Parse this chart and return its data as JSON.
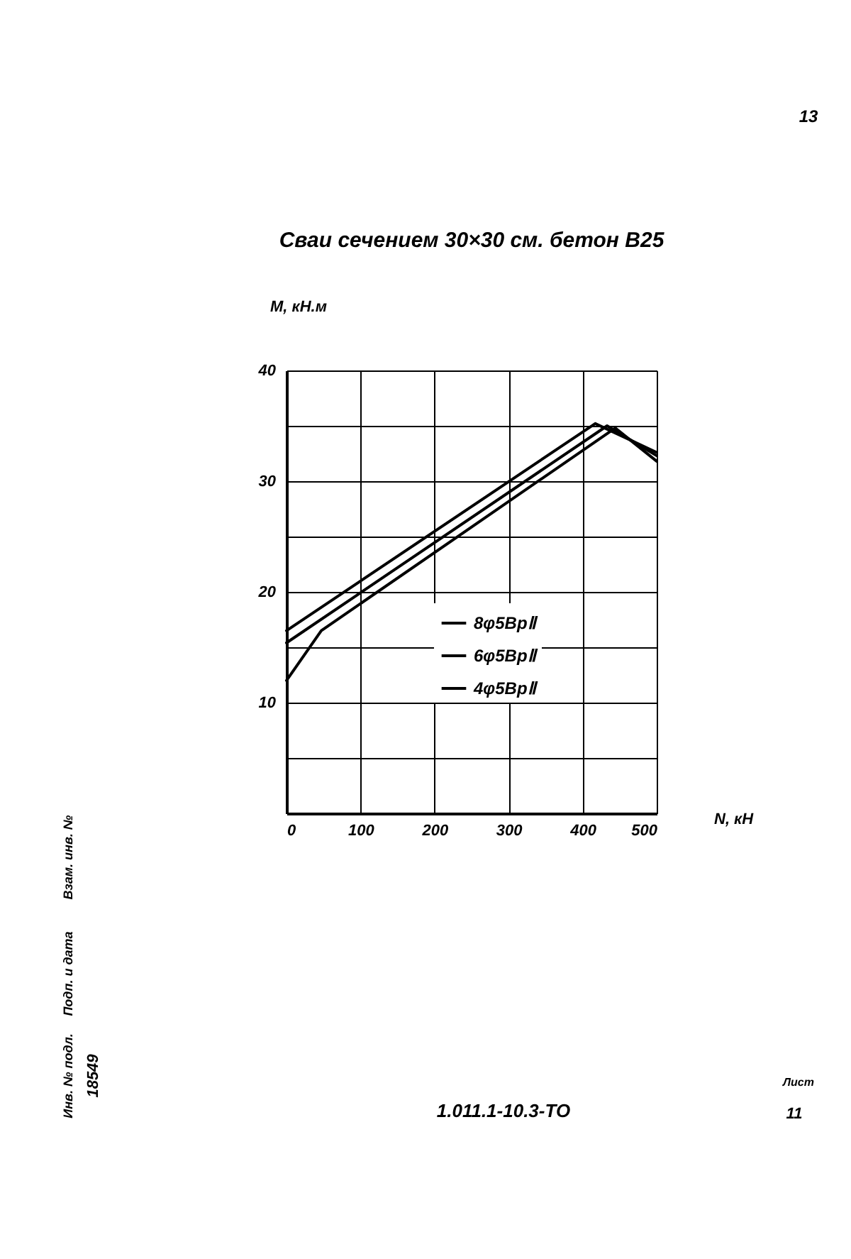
{
  "chart_data": {
    "type": "line",
    "title": "Сваи сечением 30×30 см. бетон В25",
    "xlabel": "N, кН",
    "ylabel": "M, кН.м",
    "xlim": [
      0,
      500
    ],
    "ylim": [
      0,
      40
    ],
    "xticks": [
      0,
      100,
      200,
      300,
      400,
      500
    ],
    "yticks": [
      {
        "value": 5,
        "label": null
      },
      10,
      {
        "value": 15,
        "label": null
      },
      20,
      {
        "value": 25,
        "label": null
      },
      30,
      {
        "value": 35,
        "label": null
      },
      40
    ],
    "grid": true,
    "legend": "right",
    "series": [
      {
        "name": "8φ5ВрⅡ",
        "color": "#000000",
        "x": [
          0,
          417,
          500
        ],
        "values": [
          16.5,
          35.2,
          32.6
        ]
      },
      {
        "name": "6φ5ВрⅡ",
        "color": "#000000",
        "x": [
          0,
          433,
          500
        ],
        "values": [
          15.4,
          35.0,
          32.3
        ]
      },
      {
        "name": "4φ5ВрⅡ",
        "color": "#000000",
        "x": [
          0,
          47,
          444,
          500
        ],
        "values": [
          12.0,
          16.5,
          34.8,
          31.8
        ]
      }
    ],
    "annotations": [
      "13",
      "Взам. инв. №",
      "Подп. и дата",
      "Инв. № подл.",
      "18549",
      "1.011.1-10.3-ТО",
      "Лист",
      "11"
    ]
  }
}
